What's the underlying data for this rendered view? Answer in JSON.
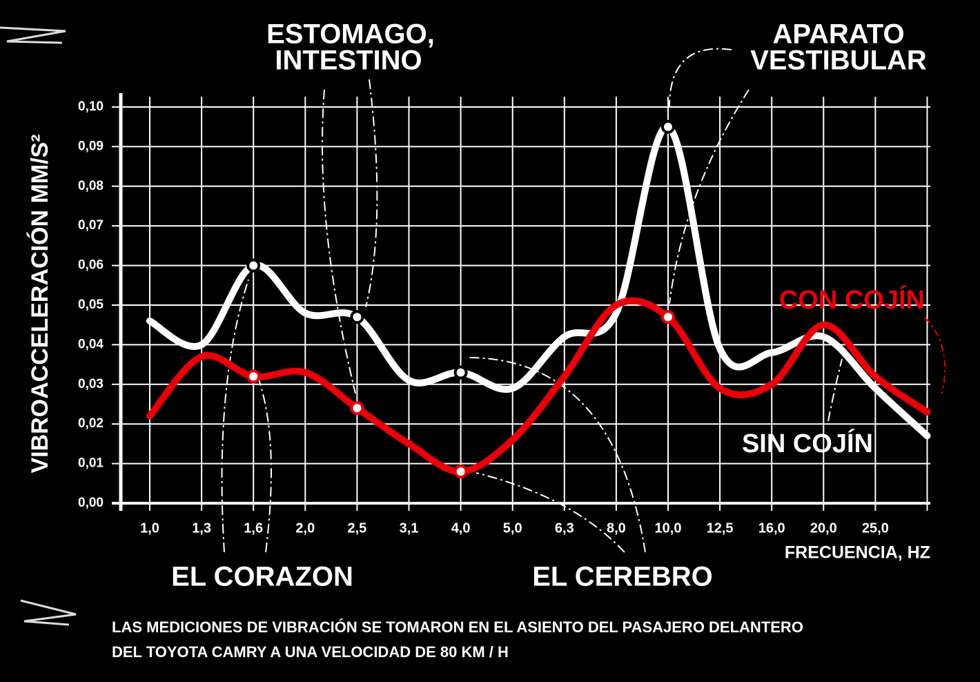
{
  "chart_data": {
    "type": "line",
    "y_label": "VIBROACCELERACIÓN MM/S²",
    "x_label": "FRECUENCIA, HZ",
    "categories": [
      "1,0",
      "1,3",
      "1,6",
      "2,0",
      "2,5",
      "3,1",
      "4,0",
      "5,0",
      "6,3",
      "8,0",
      "10,0",
      "12,5",
      "16,0",
      "20,0",
      "25,0",
      null
    ],
    "series": [
      {
        "name": "SIN COJÍN",
        "color": "#ffffff",
        "values": [
          0.046,
          0.04,
          0.06,
          0.048,
          0.047,
          0.031,
          0.033,
          0.029,
          0.042,
          0.048,
          0.095,
          0.039,
          0.038,
          0.042,
          0.029,
          0.017
        ]
      },
      {
        "name": "CON COJÍN",
        "color": "#e8000b",
        "values": [
          0.022,
          0.037,
          0.032,
          0.033,
          0.024,
          0.015,
          0.008,
          0.016,
          0.032,
          0.05,
          0.047,
          0.029,
          0.03,
          0.045,
          0.032,
          0.023
        ]
      }
    ],
    "ylim": [
      0,
      0.1
    ],
    "yticks": [
      {
        "value": 0,
        "label": "0,00"
      },
      {
        "value": 0.01,
        "label": "0,01"
      },
      {
        "value": 0.02,
        "label": "0,02"
      },
      {
        "value": 0.03,
        "label": "0,03"
      },
      {
        "value": 0.04,
        "label": "0,04"
      },
      {
        "value": 0.05,
        "label": "0,05"
      },
      {
        "value": 0.06,
        "label": "0,06"
      },
      {
        "value": 0.07,
        "label": "0,07"
      },
      {
        "value": 0.08,
        "label": "0,08"
      },
      {
        "value": 0.09,
        "label": "0,09"
      },
      {
        "value": 0.1,
        "label": "0,10"
      }
    ],
    "grid": true,
    "annotations": [
      "ESTOMAGO,",
      "INTESTINO",
      "APARATO",
      "VESTIBULAR",
      "EL CORAZON",
      "EL CEREBRO"
    ],
    "note": [
      "LAS MEDICIONES DE VIBRACIÓN SE TOMARON EN EL ASIENTO DEL PASAJERO DELANTERO",
      "DEL TOYOTA CAMRY A UNA VELOCIDAD DE 80 KM / H"
    ]
  }
}
